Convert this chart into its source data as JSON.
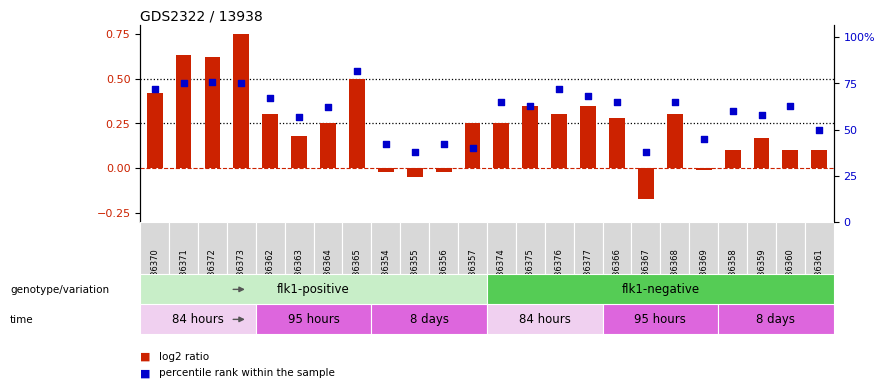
{
  "title": "GDS2322 / 13938",
  "samples": [
    "GSM86370",
    "GSM86371",
    "GSM86372",
    "GSM86373",
    "GSM86362",
    "GSM86363",
    "GSM86364",
    "GSM86365",
    "GSM86354",
    "GSM86355",
    "GSM86356",
    "GSM86357",
    "GSM86374",
    "GSM86375",
    "GSM86376",
    "GSM86377",
    "GSM86366",
    "GSM86367",
    "GSM86368",
    "GSM86369",
    "GSM86358",
    "GSM86359",
    "GSM86360",
    "GSM86361"
  ],
  "log2_ratio": [
    0.42,
    0.63,
    0.62,
    0.75,
    0.3,
    0.18,
    0.25,
    0.5,
    -0.02,
    -0.05,
    -0.02,
    0.25,
    0.25,
    0.35,
    0.3,
    0.35,
    0.28,
    -0.17,
    0.3,
    -0.01,
    0.1,
    0.17,
    0.1,
    0.1
  ],
  "percentile": [
    72,
    75,
    76,
    75,
    67,
    57,
    62,
    82,
    42,
    38,
    42,
    40,
    65,
    63,
    72,
    68,
    65,
    38,
    65,
    45,
    60,
    58,
    63,
    50
  ],
  "bar_color": "#cc2200",
  "square_color": "#0000cc",
  "dotted_lines": [
    0.25,
    0.5
  ],
  "ylim_left": [
    -0.3,
    0.8
  ],
  "ylim_right": [
    0,
    106.67
  ],
  "right_ticks": [
    0,
    25,
    50,
    75,
    100
  ],
  "right_tick_labels": [
    "0",
    "25",
    "50",
    "75",
    "100%"
  ],
  "left_ticks": [
    -0.25,
    0.0,
    0.25,
    0.5,
    0.75
  ],
  "genotype_groups": [
    {
      "label": "flk1-positive",
      "start": 0,
      "end": 12,
      "color": "#c8eec8"
    },
    {
      "label": "flk1-negative",
      "start": 12,
      "end": 24,
      "color": "#55cc55"
    }
  ],
  "time_colors": [
    "#f0d0f0",
    "#dd66dd",
    "#dd66dd",
    "#f0d0f0",
    "#dd66dd",
    "#dd66dd"
  ],
  "time_groups": [
    {
      "label": "84 hours",
      "start": 0,
      "end": 4
    },
    {
      "label": "95 hours",
      "start": 4,
      "end": 8
    },
    {
      "label": "8 days",
      "start": 8,
      "end": 12
    },
    {
      "label": "84 hours",
      "start": 12,
      "end": 16
    },
    {
      "label": "95 hours",
      "start": 16,
      "end": 20
    },
    {
      "label": "8 days",
      "start": 20,
      "end": 24
    }
  ],
  "legend_items": [
    {
      "label": "log2 ratio",
      "color": "#cc2200"
    },
    {
      "label": "percentile rank within the sample",
      "color": "#0000cc"
    }
  ]
}
